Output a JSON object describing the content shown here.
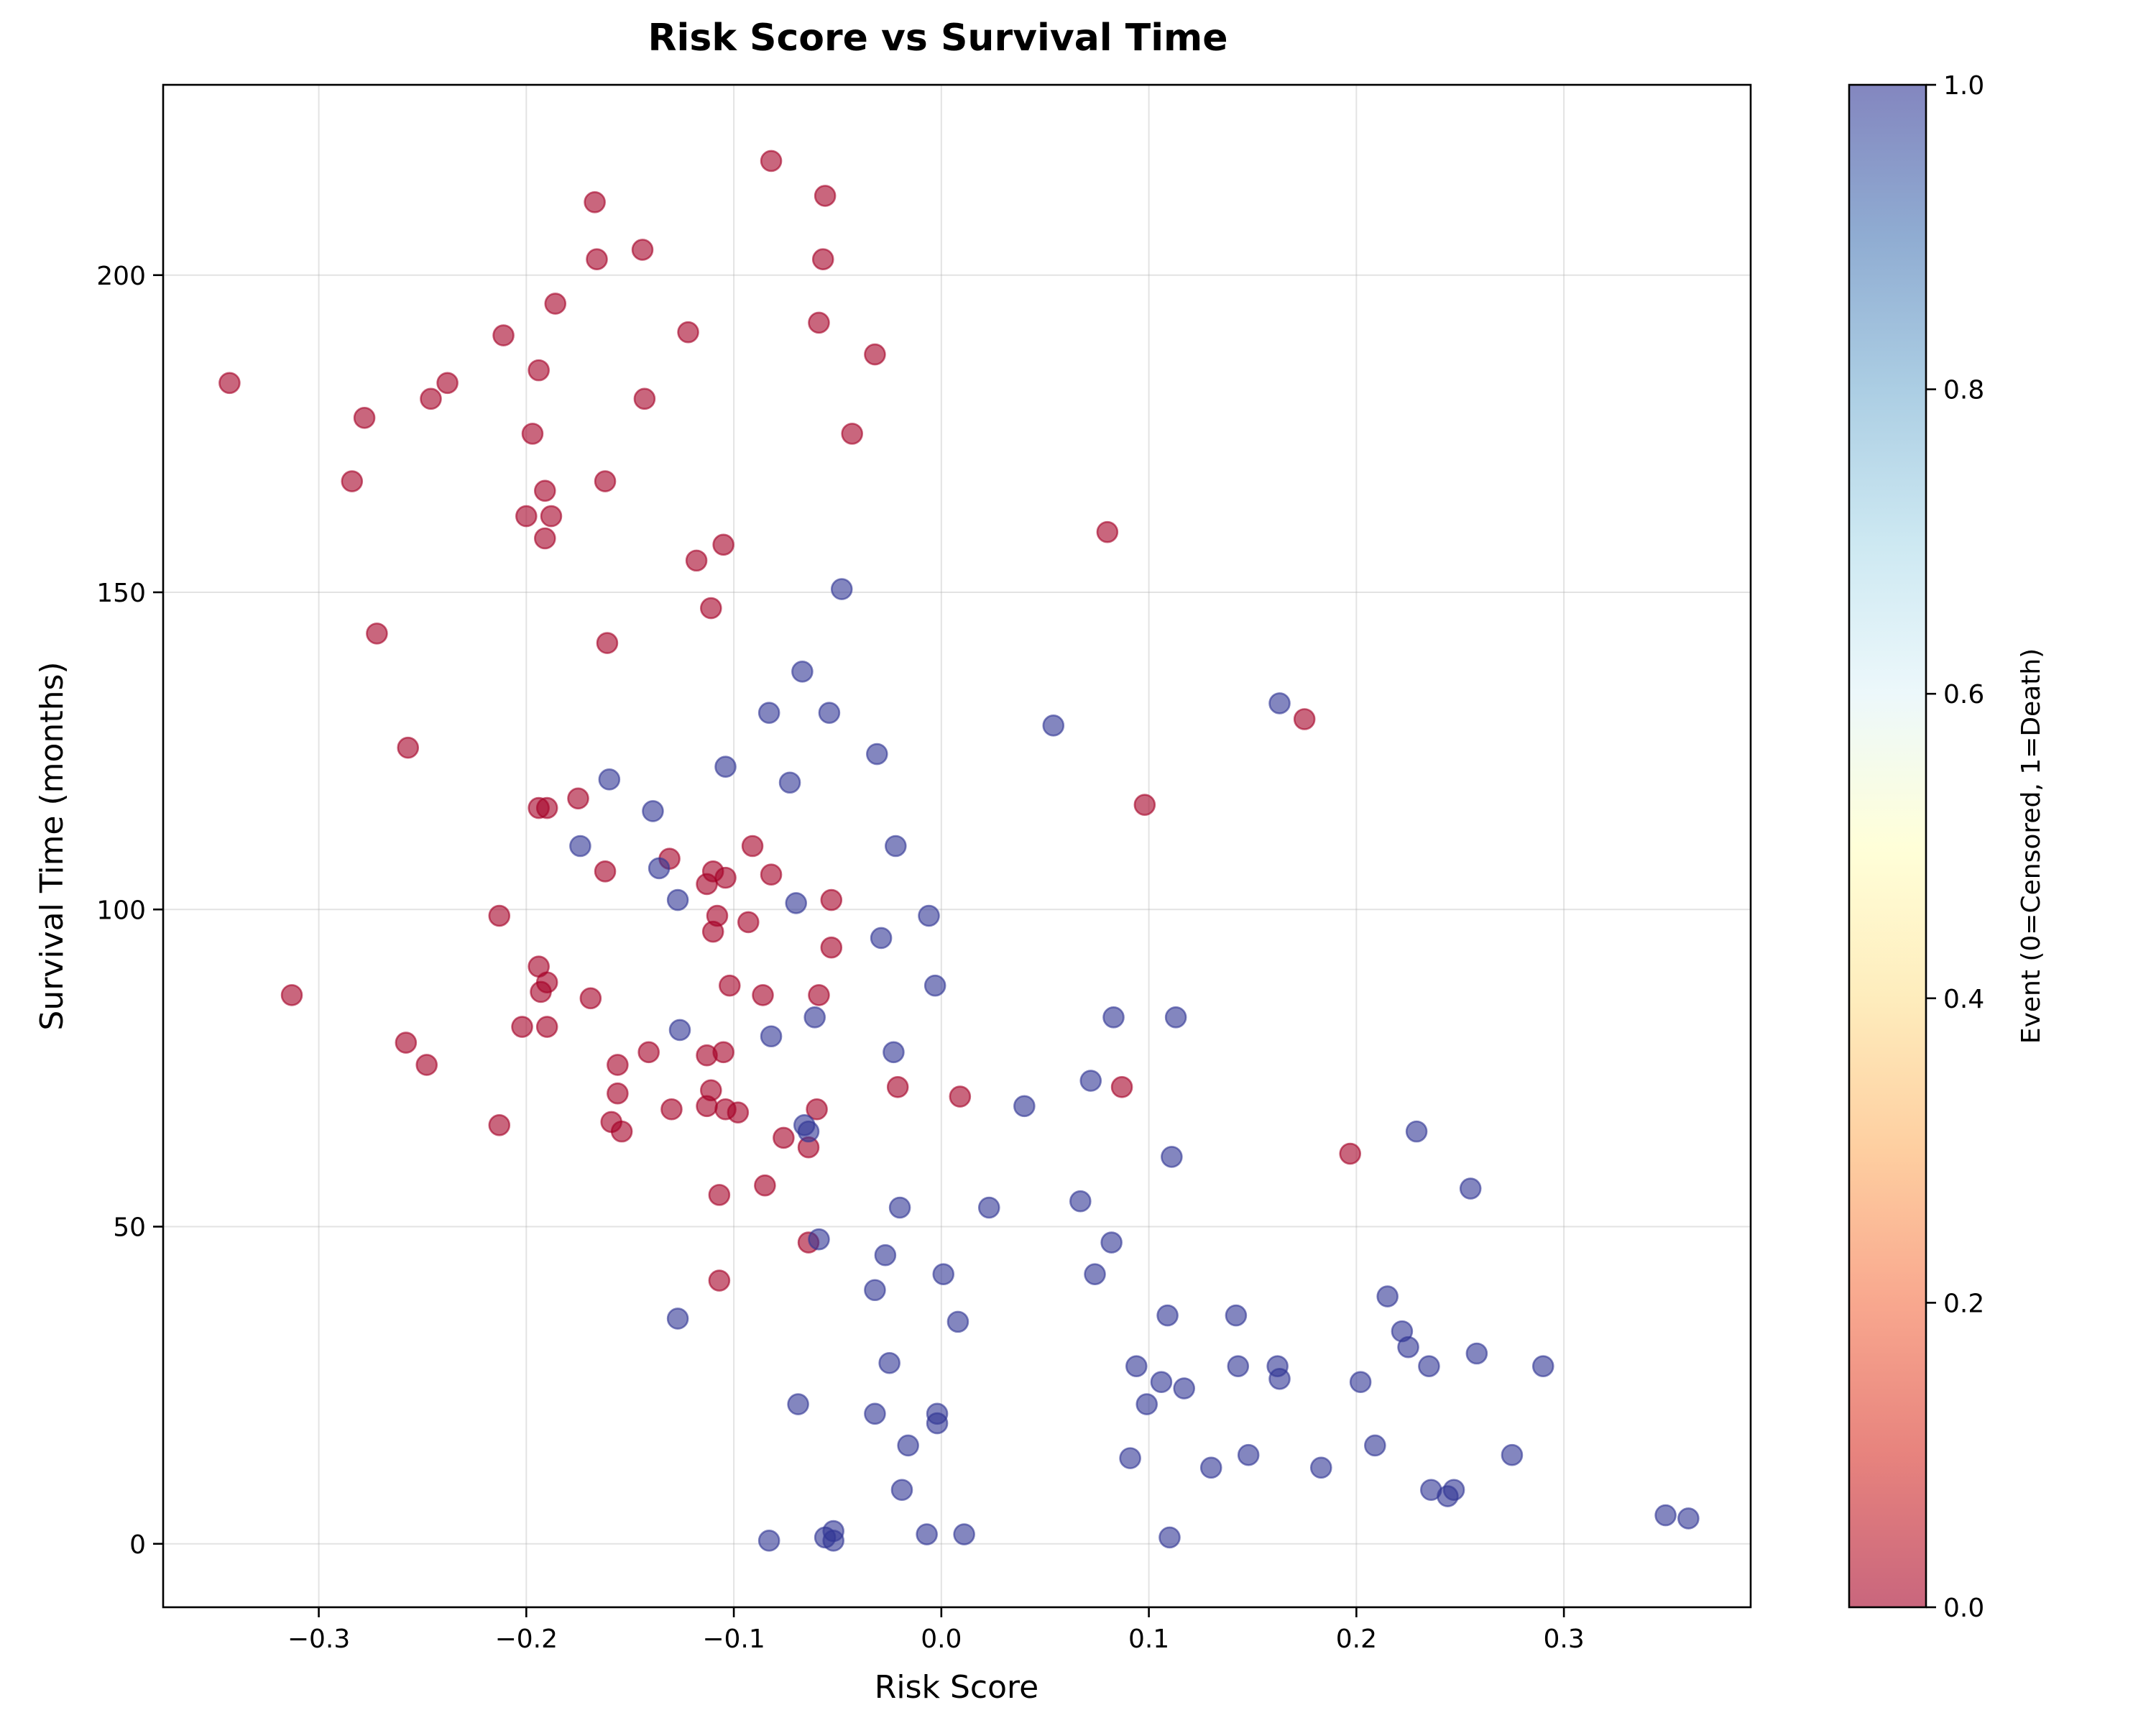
{
  "chart_data": {
    "type": "scatter",
    "title": "Risk Score vs Survival Time",
    "xlabel": "Risk Score",
    "ylabel": "Survival Time (months)",
    "xlim": [
      -0.375,
      0.39
    ],
    "ylim": [
      -10,
      230
    ],
    "xticks": [
      -0.3,
      -0.2,
      -0.1,
      0.0,
      0.1,
      0.2,
      0.3
    ],
    "xtick_labels": [
      "−0.3",
      "−0.2",
      "−0.1",
      "0.0",
      "0.1",
      "0.2",
      "0.3"
    ],
    "yticks": [
      0,
      50,
      100,
      150,
      200
    ],
    "ytick_labels": [
      "0",
      "50",
      "100",
      "150",
      "200"
    ],
    "grid": true,
    "marker_alpha": 0.6,
    "colorbar": {
      "label": "Event (0=Censored, 1=Death)",
      "range": [
        0.0,
        1.0
      ],
      "ticks": [
        0.0,
        0.2,
        0.4,
        0.6,
        0.8,
        1.0
      ],
      "tick_labels": [
        "0.0",
        "0.2",
        "0.4",
        "0.6",
        "0.8",
        "1.0"
      ],
      "colormap": [
        "#a50026",
        "#d73027",
        "#f46d43",
        "#fdae61",
        "#fee090",
        "#ffffbf",
        "#e0f3f8",
        "#abd9e9",
        "#74add1",
        "#4575b4",
        "#313695"
      ]
    },
    "series": [
      {
        "event": 0,
        "color": "#a50026",
        "points": [
          [
            -0.343,
            183
          ],
          [
            -0.313,
            86.5
          ],
          [
            -0.284,
            167.5
          ],
          [
            -0.278,
            177.5
          ],
          [
            -0.272,
            143.5
          ],
          [
            -0.258,
            79
          ],
          [
            -0.257,
            125.5
          ],
          [
            -0.248,
            75.5
          ],
          [
            -0.246,
            180.5
          ],
          [
            -0.238,
            183
          ],
          [
            -0.213,
            99
          ],
          [
            -0.213,
            66
          ],
          [
            -0.211,
            190.5
          ],
          [
            -0.202,
            81.5
          ],
          [
            -0.2,
            162
          ],
          [
            -0.197,
            175
          ],
          [
            -0.194,
            116
          ],
          [
            -0.194,
            91
          ],
          [
            -0.194,
            185
          ],
          [
            -0.193,
            87
          ],
          [
            -0.191,
            166
          ],
          [
            -0.191,
            158.5
          ],
          [
            -0.19,
            88.5
          ],
          [
            -0.19,
            81.5
          ],
          [
            -0.19,
            116
          ],
          [
            -0.188,
            162
          ],
          [
            -0.186,
            195.5
          ],
          [
            -0.175,
            117.5
          ],
          [
            -0.169,
            86
          ],
          [
            -0.167,
            211.5
          ],
          [
            -0.166,
            202.5
          ],
          [
            -0.162,
            106
          ],
          [
            -0.162,
            167.5
          ],
          [
            -0.161,
            142
          ],
          [
            -0.159,
            66.5
          ],
          [
            -0.156,
            71
          ],
          [
            -0.156,
            75.5
          ],
          [
            -0.154,
            65
          ],
          [
            -0.144,
            204
          ],
          [
            -0.143,
            180.5
          ],
          [
            -0.141,
            77.5
          ],
          [
            -0.131,
            108
          ],
          [
            -0.13,
            68.5
          ],
          [
            -0.122,
            191
          ],
          [
            -0.118,
            155
          ],
          [
            -0.113,
            69
          ],
          [
            -0.113,
            104
          ],
          [
            -0.113,
            77
          ],
          [
            -0.111,
            71.5
          ],
          [
            -0.111,
            147.5
          ],
          [
            -0.11,
            96.5
          ],
          [
            -0.11,
            106
          ],
          [
            -0.108,
            99
          ],
          [
            -0.107,
            55
          ],
          [
            -0.107,
            41.5
          ],
          [
            -0.105,
            77.5
          ],
          [
            -0.105,
            157.5
          ],
          [
            -0.104,
            105
          ],
          [
            -0.104,
            68.5
          ],
          [
            -0.102,
            88
          ],
          [
            -0.098,
            68
          ],
          [
            -0.093,
            98
          ],
          [
            -0.091,
            110
          ],
          [
            -0.086,
            86.5
          ],
          [
            -0.085,
            56.5
          ],
          [
            -0.082,
            105.5
          ],
          [
            -0.082,
            218
          ],
          [
            -0.076,
            64
          ],
          [
            -0.064,
            47.5
          ],
          [
            -0.064,
            62.5
          ],
          [
            -0.06,
            68.5
          ],
          [
            -0.059,
            86.5
          ],
          [
            -0.059,
            192.5
          ],
          [
            -0.057,
            202.5
          ],
          [
            -0.056,
            212.5
          ],
          [
            -0.053,
            101.5
          ],
          [
            -0.053,
            94
          ],
          [
            -0.032,
            187.5
          ],
          [
            -0.043,
            175
          ],
          [
            -0.021,
            72
          ],
          [
            0.009,
            70.5
          ],
          [
            0.08,
            159.5
          ],
          [
            0.087,
            72
          ],
          [
            0.098,
            116.5
          ],
          [
            0.175,
            130
          ],
          [
            0.197,
            61.5
          ]
        ]
      },
      {
        "event": 1,
        "color": "#313695",
        "points": [
          [
            -0.174,
            110
          ],
          [
            -0.16,
            120.5
          ],
          [
            -0.139,
            115.5
          ],
          [
            -0.136,
            106.5
          ],
          [
            -0.127,
            101.5
          ],
          [
            -0.126,
            81
          ],
          [
            -0.127,
            35.5
          ],
          [
            -0.104,
            122.5
          ],
          [
            -0.083,
            131
          ],
          [
            -0.082,
            80
          ],
          [
            -0.083,
            0.5
          ],
          [
            -0.073,
            120
          ],
          [
            -0.07,
            101
          ],
          [
            -0.069,
            22
          ],
          [
            -0.067,
            137.5
          ],
          [
            -0.066,
            66
          ],
          [
            -0.064,
            65
          ],
          [
            -0.061,
            83
          ],
          [
            -0.059,
            48
          ],
          [
            -0.056,
            1
          ],
          [
            -0.054,
            131
          ],
          [
            -0.052,
            2
          ],
          [
            -0.052,
            0.5
          ],
          [
            -0.048,
            150.5
          ],
          [
            -0.032,
            40
          ],
          [
            -0.032,
            20.5
          ],
          [
            -0.031,
            124.5
          ],
          [
            -0.029,
            95.5
          ],
          [
            -0.027,
            45.5
          ],
          [
            -0.025,
            28.5
          ],
          [
            -0.023,
            77.5
          ],
          [
            -0.022,
            110
          ],
          [
            -0.02,
            53
          ],
          [
            -0.019,
            8.5
          ],
          [
            -0.016,
            15.5
          ],
          [
            -0.007,
            1.5
          ],
          [
            -0.006,
            99
          ],
          [
            -0.003,
            88
          ],
          [
            -0.002,
            20.5
          ],
          [
            -0.002,
            19
          ],
          [
            0.001,
            42.5
          ],
          [
            0.008,
            35
          ],
          [
            0.011,
            1.5
          ],
          [
            0.023,
            53
          ],
          [
            0.04,
            69
          ],
          [
            0.054,
            129
          ],
          [
            0.067,
            54
          ],
          [
            0.072,
            73
          ],
          [
            0.074,
            42.5
          ],
          [
            0.082,
            47.5
          ],
          [
            0.083,
            83
          ],
          [
            0.091,
            13.5
          ],
          [
            0.094,
            28
          ],
          [
            0.099,
            22
          ],
          [
            0.106,
            25.5
          ],
          [
            0.109,
            36
          ],
          [
            0.11,
            1
          ],
          [
            0.111,
            61
          ],
          [
            0.113,
            83
          ],
          [
            0.117,
            24.5
          ],
          [
            0.13,
            12
          ],
          [
            0.142,
            36
          ],
          [
            0.143,
            28
          ],
          [
            0.148,
            14
          ],
          [
            0.162,
            28
          ],
          [
            0.163,
            26
          ],
          [
            0.163,
            132.5
          ],
          [
            0.183,
            12
          ],
          [
            0.202,
            25.5
          ],
          [
            0.209,
            15.5
          ],
          [
            0.215,
            39
          ],
          [
            0.222,
            33.5
          ],
          [
            0.225,
            31
          ],
          [
            0.229,
            65
          ],
          [
            0.235,
            28
          ],
          [
            0.236,
            8.5
          ],
          [
            0.244,
            7.5
          ],
          [
            0.247,
            8.5
          ],
          [
            0.255,
            56
          ],
          [
            0.258,
            30
          ],
          [
            0.275,
            14
          ],
          [
            0.29,
            28
          ],
          [
            0.349,
            4.5
          ],
          [
            0.36,
            4
          ]
        ]
      }
    ]
  }
}
